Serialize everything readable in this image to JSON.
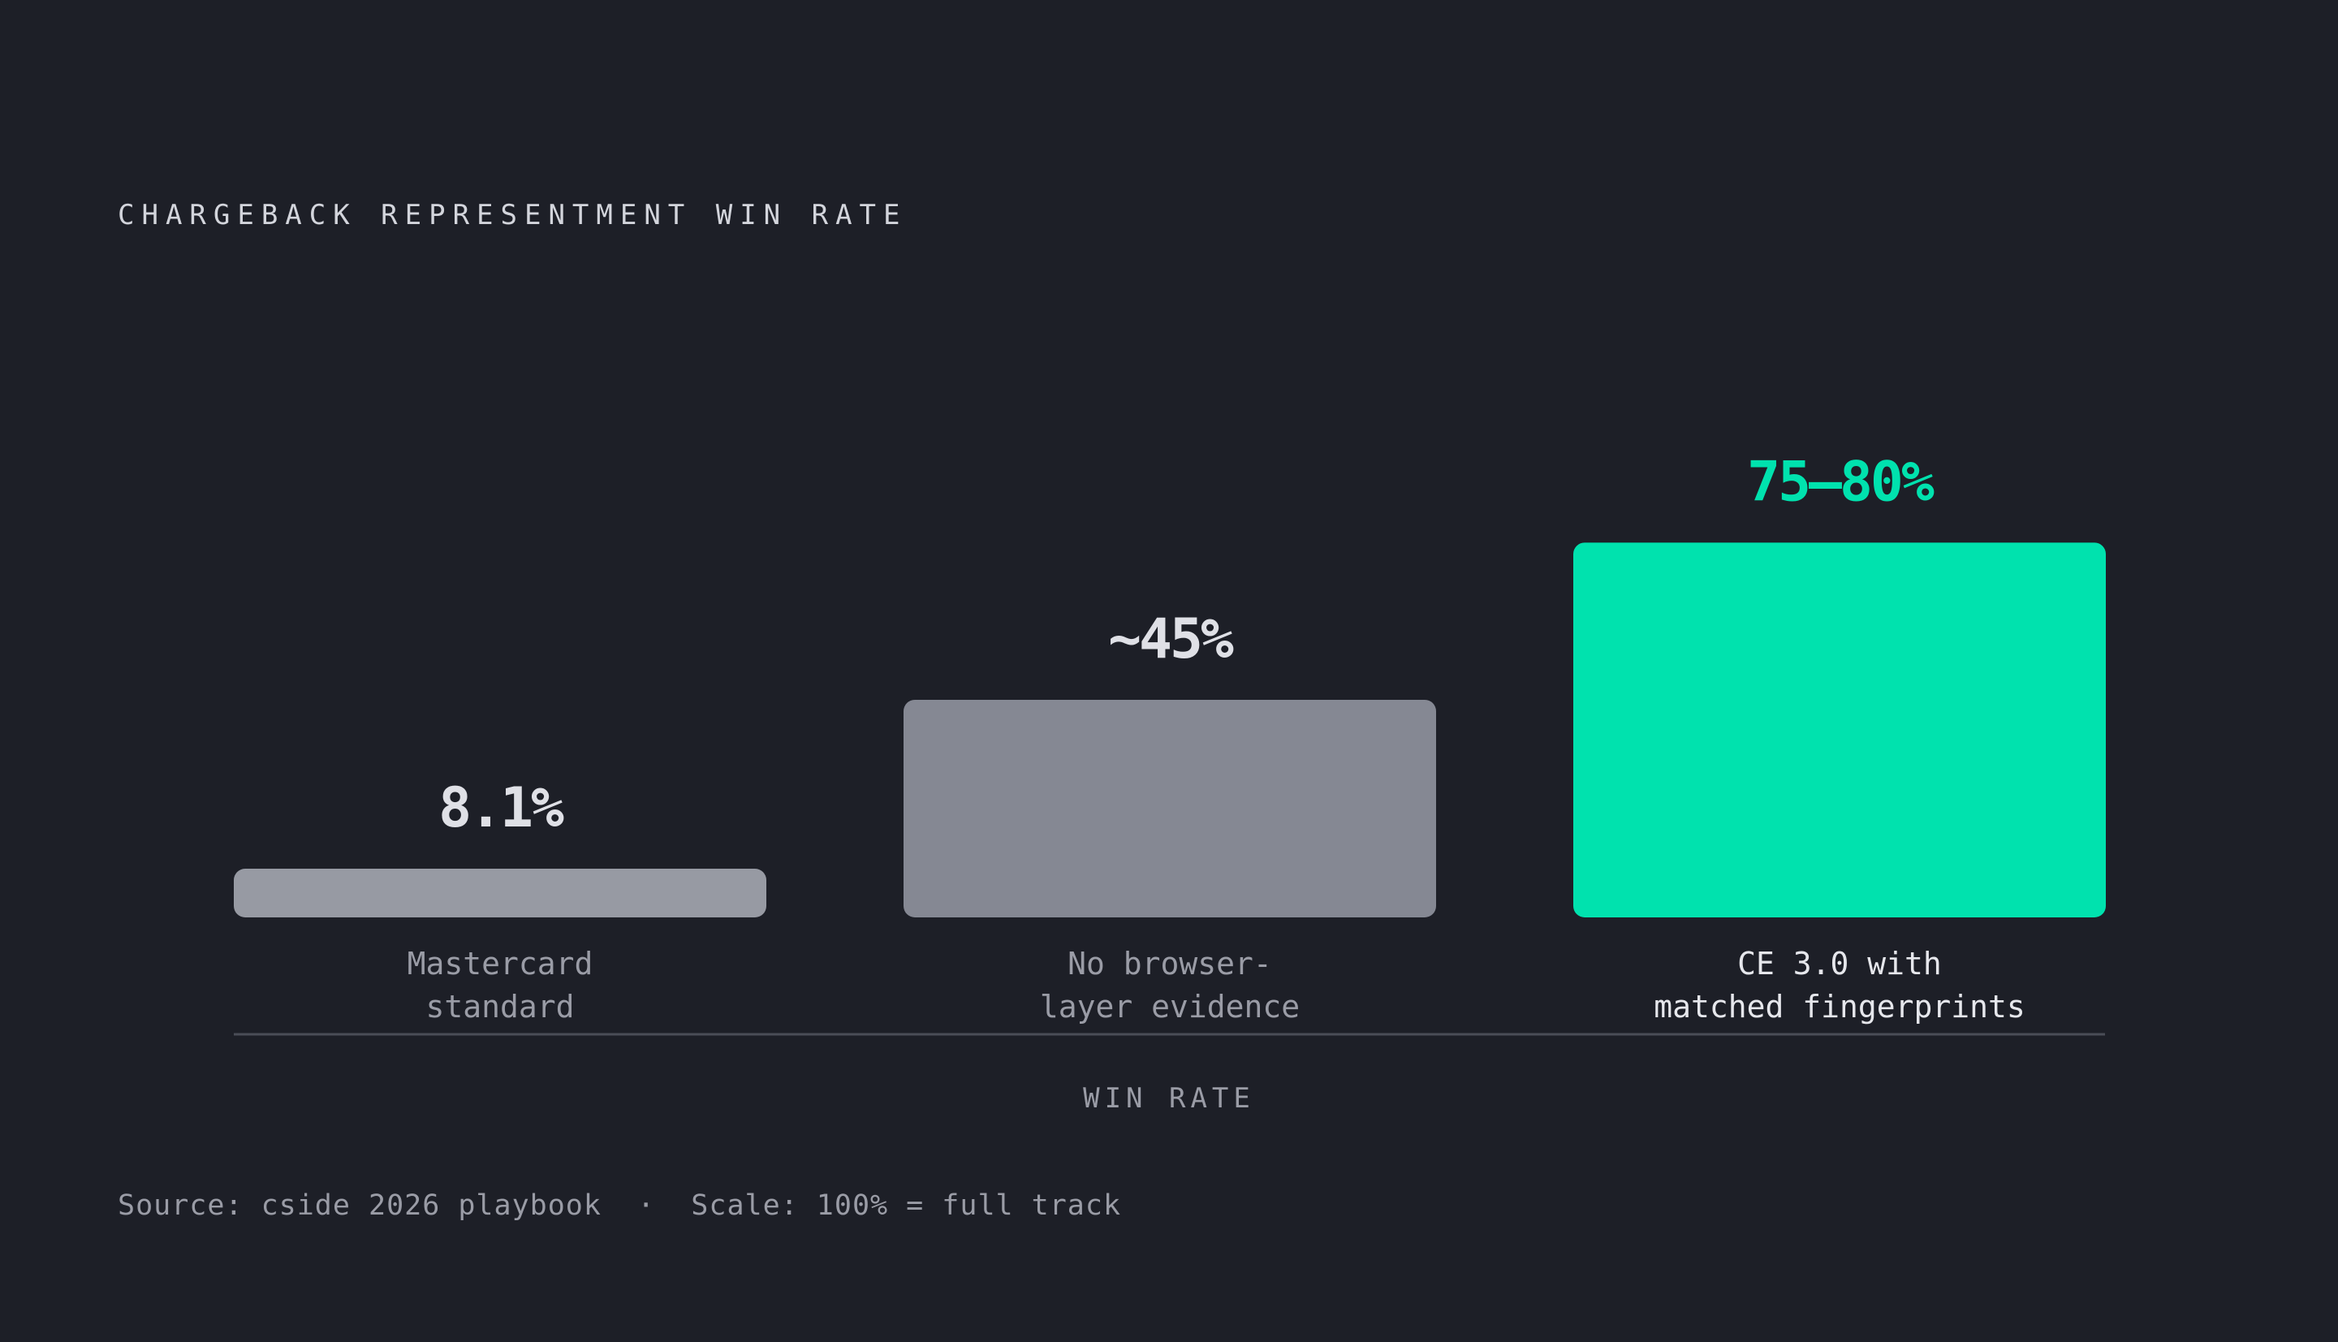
{
  "chart_data": {
    "type": "bar",
    "title": "CHARGEBACK REPRESENTMENT WIN RATE",
    "xlabel": "WIN RATE",
    "ylabel": "",
    "ylim": [
      0,
      100
    ],
    "grid": false,
    "categories": [
      [
        "Mastercard",
        "standard"
      ],
      [
        "No browser-",
        "layer evidence"
      ],
      [
        "CE 3.0 with",
        "matched fingerprints"
      ]
    ],
    "values": [
      8.1,
      45,
      77.5
    ],
    "value_labels": [
      "8.1%",
      "~45%",
      "75–80%"
    ],
    "bar_colors": [
      "#979aa3",
      "#858893",
      "#00e2ae"
    ],
    "label_colors": [
      "#dfe0e6",
      "#dfe0e6",
      "#00e2ae"
    ],
    "category_colors": [
      "#9a9ca6",
      "#9a9ca6",
      "#e6e7ec"
    ]
  },
  "footnote": "Source: cside 2026 playbook  ·  Scale: 100% = full track"
}
